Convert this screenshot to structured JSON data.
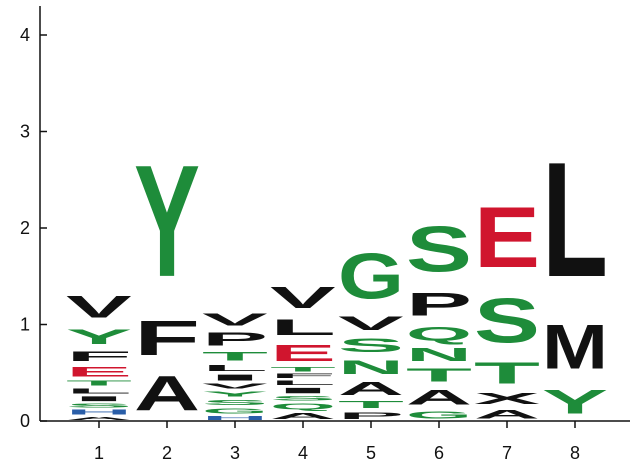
{
  "chart_data": {
    "type": "sequence-logo",
    "title": "",
    "xlabel": "",
    "ylabel": "",
    "ylim": [
      0,
      4.3
    ],
    "y_ticks": [
      "0",
      "1",
      "2",
      "3",
      "4"
    ],
    "categories": [
      "1",
      "2",
      "3",
      "4",
      "5",
      "6",
      "7",
      "8"
    ],
    "colors": {
      "hydrophobic": "#111111",
      "polar": "#1e8c3a",
      "acidic": "#d0152e",
      "basic": "#2a5ea8"
    },
    "positions": [
      {
        "label": "1",
        "stack": [
          {
            "letter": "A",
            "bits": 0.05,
            "color": "#111111"
          },
          {
            "letter": "H",
            "bits": 0.08,
            "color": "#2a5ea8"
          },
          {
            "letter": "S",
            "bits": 0.06,
            "color": "#1e8c3a"
          },
          {
            "letter": "I",
            "bits": 0.08,
            "color": "#111111"
          },
          {
            "letter": "L",
            "bits": 0.08,
            "color": "#111111"
          },
          {
            "letter": "T",
            "bits": 0.08,
            "color": "#1e8c3a"
          },
          {
            "letter": "E",
            "bits": 0.16,
            "color": "#d0152e"
          },
          {
            "letter": "F",
            "bits": 0.16,
            "color": "#111111"
          },
          {
            "letter": "Y",
            "bits": 0.25,
            "color": "#1e8c3a"
          },
          {
            "letter": "V",
            "bits": 0.37,
            "color": "#111111"
          }
        ]
      },
      {
        "label": "2",
        "stack": [
          {
            "letter": "A",
            "bits": 0.57,
            "color": "#111111"
          },
          {
            "letter": "F",
            "bits": 0.57,
            "color": "#111111"
          },
          {
            "letter": "Y",
            "bits": 1.85,
            "color": "#1e8c3a"
          }
        ]
      },
      {
        "label": "3",
        "stack": [
          {
            "letter": "H",
            "bits": 0.06,
            "color": "#2a5ea8"
          },
          {
            "letter": "G",
            "bits": 0.09,
            "color": "#1e8c3a"
          },
          {
            "letter": "S",
            "bits": 0.09,
            "color": "#1e8c3a"
          },
          {
            "letter": "Y",
            "bits": 0.08,
            "color": "#1e8c3a"
          },
          {
            "letter": "V",
            "bits": 0.08,
            "color": "#111111"
          },
          {
            "letter": "I",
            "bits": 0.1,
            "color": "#111111"
          },
          {
            "letter": "L",
            "bits": 0.1,
            "color": "#111111"
          },
          {
            "letter": "T",
            "bits": 0.14,
            "color": "#1e8c3a"
          },
          {
            "letter": "P",
            "bits": 0.21,
            "color": "#111111"
          },
          {
            "letter": "V",
            "bits": 0.2,
            "color": "#111111"
          }
        ]
      },
      {
        "label": "4",
        "stack": [
          {
            "letter": "A",
            "bits": 0.1,
            "color": "#111111"
          },
          {
            "letter": "Q",
            "bits": 0.1,
            "color": "#1e8c3a"
          },
          {
            "letter": "S",
            "bits": 0.07,
            "color": "#1e8c3a"
          },
          {
            "letter": "I",
            "bits": 0.09,
            "color": "#111111"
          },
          {
            "letter": "L",
            "bits": 0.07,
            "color": "#111111"
          },
          {
            "letter": "F",
            "bits": 0.07,
            "color": "#111111"
          },
          {
            "letter": "T",
            "bits": 0.07,
            "color": "#1e8c3a"
          },
          {
            "letter": "E",
            "bits": 0.27,
            "color": "#d0152e"
          },
          {
            "letter": "L",
            "bits": 0.26,
            "color": "#111111"
          },
          {
            "letter": "V",
            "bits": 0.35,
            "color": "#111111"
          }
        ]
      },
      {
        "label": "5",
        "stack": [
          {
            "letter": "P",
            "bits": 0.11,
            "color": "#111111"
          },
          {
            "letter": "T",
            "bits": 0.12,
            "color": "#1e8c3a"
          },
          {
            "letter": "A",
            "bits": 0.21,
            "color": "#111111"
          },
          {
            "letter": "N",
            "bits": 0.23,
            "color": "#1e8c3a"
          },
          {
            "letter": "S",
            "bits": 0.23,
            "color": "#1e8c3a"
          },
          {
            "letter": "V",
            "bits": 0.22,
            "color": "#111111"
          },
          {
            "letter": "G",
            "bits": 0.75,
            "color": "#1e8c3a"
          }
        ]
      },
      {
        "label": "6",
        "stack": [
          {
            "letter": "G",
            "bits": 0.12,
            "color": "#1e8c3a"
          },
          {
            "letter": "A",
            "bits": 0.25,
            "color": "#111111"
          },
          {
            "letter": "T",
            "bits": 0.21,
            "color": "#1e8c3a"
          },
          {
            "letter": "N",
            "bits": 0.21,
            "color": "#1e8c3a"
          },
          {
            "letter": "Q",
            "bits": 0.23,
            "color": "#1e8c3a"
          },
          {
            "letter": "P",
            "bits": 0.38,
            "color": "#111111"
          },
          {
            "letter": "S",
            "bits": 0.75,
            "color": "#1e8c3a"
          }
        ]
      },
      {
        "label": "7",
        "stack": [
          {
            "letter": "A",
            "bits": 0.14,
            "color": "#111111"
          },
          {
            "letter": "X",
            "bits": 0.18,
            "color": "#111111"
          },
          {
            "letter": "T",
            "bits": 0.35,
            "color": "#1e8c3a"
          },
          {
            "letter": "S",
            "bits": 0.73,
            "color": "#1e8c3a"
          },
          {
            "letter": "E",
            "bits": 1.0,
            "color": "#d0152e"
          }
        ]
      },
      {
        "label": "8",
        "stack": [
          {
            "letter": "Y",
            "bits": 0.4,
            "color": "#1e8c3a"
          },
          {
            "letter": "M",
            "bits": 0.73,
            "color": "#111111"
          },
          {
            "letter": "L",
            "bits": 1.9,
            "color": "#111111"
          }
        ]
      }
    ]
  }
}
